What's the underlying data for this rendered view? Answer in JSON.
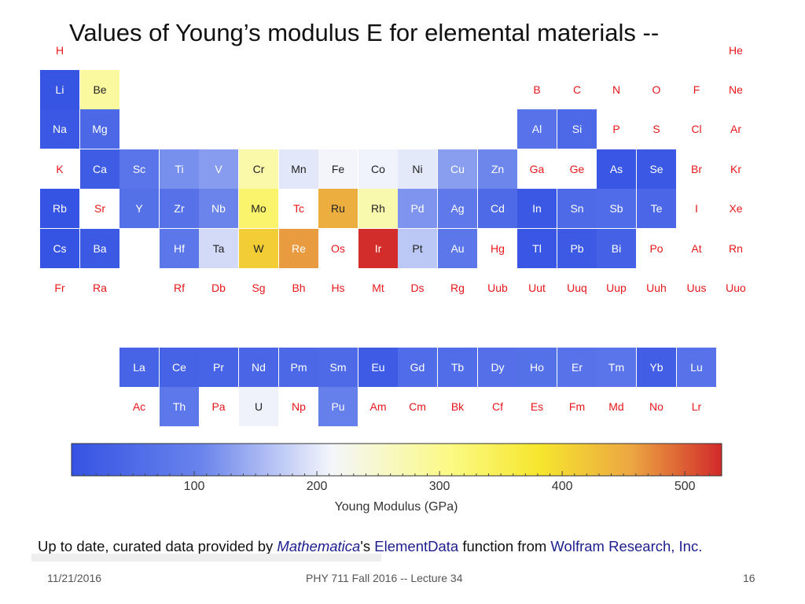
{
  "slide": {
    "title": "Values of  Young’s modulus E for elemental materials --",
    "credit": {
      "part1": "Up to date, curated data provided by ",
      "part2": "Mathematica",
      "part3": "'s ",
      "part4": "ElementData",
      "part5": " function from ",
      "part6": "Wolfram Research, Inc."
    },
    "footer": {
      "date": "11/21/2016",
      "course": "PHY 711  Fall 2016 -- Lecture 34",
      "page": "16"
    }
  },
  "colors": {
    "no_data_text": "#e8171b",
    "colormap": [
      "#3553e3",
      "#6a84ec",
      "#f4f6fb",
      "#fbfa86",
      "#f6e62e",
      "#eca742",
      "#d12a2a"
    ]
  },
  "chart_data": {
    "type": "heatmap",
    "title": "Values of  Young’s modulus E for elemental materials --",
    "colorbar": {
      "label": "Young Modulus (GPa)",
      "ticks": [
        100,
        200,
        300,
        400,
        500
      ],
      "range": [
        0,
        530
      ]
    },
    "elements": [
      {
        "symbol": "H",
        "period": 1,
        "group": 1,
        "value": null
      },
      {
        "symbol": "He",
        "period": 1,
        "group": 18,
        "value": null
      },
      {
        "symbol": "Li",
        "period": 2,
        "group": 1,
        "value": 4.9
      },
      {
        "symbol": "Be",
        "period": 2,
        "group": 2,
        "value": 287
      },
      {
        "symbol": "B",
        "period": 2,
        "group": 13,
        "value": null
      },
      {
        "symbol": "C",
        "period": 2,
        "group": 14,
        "value": null
      },
      {
        "symbol": "N",
        "period": 2,
        "group": 15,
        "value": null
      },
      {
        "symbol": "O",
        "period": 2,
        "group": 16,
        "value": null
      },
      {
        "symbol": "F",
        "period": 2,
        "group": 17,
        "value": null
      },
      {
        "symbol": "Ne",
        "period": 2,
        "group": 18,
        "value": null
      },
      {
        "symbol": "Na",
        "period": 3,
        "group": 1,
        "value": 10
      },
      {
        "symbol": "Mg",
        "period": 3,
        "group": 2,
        "value": 45
      },
      {
        "symbol": "Al",
        "period": 3,
        "group": 13,
        "value": 70
      },
      {
        "symbol": "Si",
        "period": 3,
        "group": 14,
        "value": 47
      },
      {
        "symbol": "P",
        "period": 3,
        "group": 15,
        "value": null
      },
      {
        "symbol": "S",
        "period": 3,
        "group": 16,
        "value": null
      },
      {
        "symbol": "Cl",
        "period": 3,
        "group": 17,
        "value": null
      },
      {
        "symbol": "Ar",
        "period": 3,
        "group": 18,
        "value": null
      },
      {
        "symbol": "K",
        "period": 4,
        "group": 1,
        "value": null
      },
      {
        "symbol": "Ca",
        "period": 4,
        "group": 2,
        "value": 20
      },
      {
        "symbol": "Sc",
        "period": 4,
        "group": 3,
        "value": 74
      },
      {
        "symbol": "Ti",
        "period": 4,
        "group": 4,
        "value": 116
      },
      {
        "symbol": "V",
        "period": 4,
        "group": 5,
        "value": 128
      },
      {
        "symbol": "Cr",
        "period": 4,
        "group": 6,
        "value": 279
      },
      {
        "symbol": "Mn",
        "period": 4,
        "group": 7,
        "value": 198
      },
      {
        "symbol": "Fe",
        "period": 4,
        "group": 8,
        "value": 211
      },
      {
        "symbol": "Co",
        "period": 4,
        "group": 9,
        "value": 209
      },
      {
        "symbol": "Ni",
        "period": 4,
        "group": 10,
        "value": 200
      },
      {
        "symbol": "Cu",
        "period": 4,
        "group": 11,
        "value": 130
      },
      {
        "symbol": "Zn",
        "period": 4,
        "group": 12,
        "value": 108
      },
      {
        "symbol": "Ga",
        "period": 4,
        "group": 13,
        "value": null
      },
      {
        "symbol": "Ge",
        "period": 4,
        "group": 14,
        "value": null
      },
      {
        "symbol": "As",
        "period": 4,
        "group": 15,
        "value": 8
      },
      {
        "symbol": "Se",
        "period": 4,
        "group": 16,
        "value": 10
      },
      {
        "symbol": "Br",
        "period": 4,
        "group": 17,
        "value": null
      },
      {
        "symbol": "Kr",
        "period": 4,
        "group": 18,
        "value": null
      },
      {
        "symbol": "Rb",
        "period": 5,
        "group": 1,
        "value": 2.4
      },
      {
        "symbol": "Sr",
        "period": 5,
        "group": 2,
        "value": null
      },
      {
        "symbol": "Y",
        "period": 5,
        "group": 3,
        "value": 64
      },
      {
        "symbol": "Zr",
        "period": 5,
        "group": 4,
        "value": 68
      },
      {
        "symbol": "Nb",
        "period": 5,
        "group": 5,
        "value": 105
      },
      {
        "symbol": "Mo",
        "period": 5,
        "group": 6,
        "value": 329
      },
      {
        "symbol": "Tc",
        "period": 5,
        "group": 7,
        "value": null
      },
      {
        "symbol": "Ru",
        "period": 5,
        "group": 8,
        "value": 447
      },
      {
        "symbol": "Rh",
        "period": 5,
        "group": 9,
        "value": 275
      },
      {
        "symbol": "Pd",
        "period": 5,
        "group": 10,
        "value": 121
      },
      {
        "symbol": "Ag",
        "period": 5,
        "group": 11,
        "value": 83
      },
      {
        "symbol": "Cd",
        "period": 5,
        "group": 12,
        "value": 50
      },
      {
        "symbol": "In",
        "period": 5,
        "group": 13,
        "value": 11
      },
      {
        "symbol": "Sn",
        "period": 5,
        "group": 14,
        "value": 50
      },
      {
        "symbol": "Sb",
        "period": 5,
        "group": 15,
        "value": 55
      },
      {
        "symbol": "Te",
        "period": 5,
        "group": 16,
        "value": 43
      },
      {
        "symbol": "I",
        "period": 5,
        "group": 17,
        "value": null
      },
      {
        "symbol": "Xe",
        "period": 5,
        "group": 18,
        "value": null
      },
      {
        "symbol": "Cs",
        "period": 6,
        "group": 1,
        "value": 1.7
      },
      {
        "symbol": "Ba",
        "period": 6,
        "group": 2,
        "value": 13
      },
      {
        "symbol": "Hf",
        "period": 6,
        "group": 4,
        "value": 78
      },
      {
        "symbol": "Ta",
        "period": 6,
        "group": 5,
        "value": 186
      },
      {
        "symbol": "W",
        "period": 6,
        "group": 6,
        "value": 411
      },
      {
        "symbol": "Re",
        "period": 6,
        "group": 7,
        "value": 463
      },
      {
        "symbol": "Os",
        "period": 6,
        "group": 8,
        "value": null
      },
      {
        "symbol": "Ir",
        "period": 6,
        "group": 9,
        "value": 528
      },
      {
        "symbol": "Pt",
        "period": 6,
        "group": 10,
        "value": 168
      },
      {
        "symbol": "Au",
        "period": 6,
        "group": 11,
        "value": 78
      },
      {
        "symbol": "Hg",
        "period": 6,
        "group": 12,
        "value": null
      },
      {
        "symbol": "Tl",
        "period": 6,
        "group": 13,
        "value": 8
      },
      {
        "symbol": "Pb",
        "period": 6,
        "group": 14,
        "value": 16
      },
      {
        "symbol": "Bi",
        "period": 6,
        "group": 15,
        "value": 32
      },
      {
        "symbol": "Po",
        "period": 6,
        "group": 16,
        "value": null
      },
      {
        "symbol": "At",
        "period": 6,
        "group": 17,
        "value": null
      },
      {
        "symbol": "Rn",
        "period": 6,
        "group": 18,
        "value": null
      },
      {
        "symbol": "Fr",
        "period": 7,
        "group": 1,
        "value": null
      },
      {
        "symbol": "Ra",
        "period": 7,
        "group": 2,
        "value": null
      },
      {
        "symbol": "Rf",
        "period": 7,
        "group": 4,
        "value": null
      },
      {
        "symbol": "Db",
        "period": 7,
        "group": 5,
        "value": null
      },
      {
        "symbol": "Sg",
        "period": 7,
        "group": 6,
        "value": null
      },
      {
        "symbol": "Bh",
        "period": 7,
        "group": 7,
        "value": null
      },
      {
        "symbol": "Hs",
        "period": 7,
        "group": 8,
        "value": null
      },
      {
        "symbol": "Mt",
        "period": 7,
        "group": 9,
        "value": null
      },
      {
        "symbol": "Ds",
        "period": 7,
        "group": 10,
        "value": null
      },
      {
        "symbol": "Rg",
        "period": 7,
        "group": 11,
        "value": null
      },
      {
        "symbol": "Uub",
        "period": 7,
        "group": 12,
        "value": null
      },
      {
        "symbol": "Uut",
        "period": 7,
        "group": 13,
        "value": null
      },
      {
        "symbol": "Uuq",
        "period": 7,
        "group": 14,
        "value": null
      },
      {
        "symbol": "Uup",
        "period": 7,
        "group": 15,
        "value": null
      },
      {
        "symbol": "Uuh",
        "period": 7,
        "group": 16,
        "value": null
      },
      {
        "symbol": "Uus",
        "period": 7,
        "group": 17,
        "value": null
      },
      {
        "symbol": "Uuo",
        "period": 7,
        "group": 18,
        "value": null
      },
      {
        "symbol": "La",
        "period": 9,
        "group": 3,
        "value": 37
      },
      {
        "symbol": "Ce",
        "period": 9,
        "group": 4,
        "value": 34
      },
      {
        "symbol": "Pr",
        "period": 9,
        "group": 5,
        "value": 37
      },
      {
        "symbol": "Nd",
        "period": 9,
        "group": 6,
        "value": 41
      },
      {
        "symbol": "Pm",
        "period": 9,
        "group": 7,
        "value": 46
      },
      {
        "symbol": "Sm",
        "period": 9,
        "group": 8,
        "value": 50
      },
      {
        "symbol": "Eu",
        "period": 9,
        "group": 9,
        "value": 18
      },
      {
        "symbol": "Gd",
        "period": 9,
        "group": 10,
        "value": 55
      },
      {
        "symbol": "Tb",
        "period": 9,
        "group": 11,
        "value": 56
      },
      {
        "symbol": "Dy",
        "period": 9,
        "group": 12,
        "value": 61
      },
      {
        "symbol": "Ho",
        "period": 9,
        "group": 13,
        "value": 64
      },
      {
        "symbol": "Er",
        "period": 9,
        "group": 14,
        "value": 70
      },
      {
        "symbol": "Tm",
        "period": 9,
        "group": 15,
        "value": 74
      },
      {
        "symbol": "Yb",
        "period": 9,
        "group": 16,
        "value": 24
      },
      {
        "symbol": "Lu",
        "period": 9,
        "group": 17,
        "value": 69
      },
      {
        "symbol": "Ac",
        "period": 10,
        "group": 3,
        "value": null
      },
      {
        "symbol": "Th",
        "period": 10,
        "group": 4,
        "value": 79
      },
      {
        "symbol": "Pa",
        "period": 10,
        "group": 5,
        "value": null
      },
      {
        "symbol": "U",
        "period": 10,
        "group": 6,
        "value": 208
      },
      {
        "symbol": "Np",
        "period": 10,
        "group": 7,
        "value": null
      },
      {
        "symbol": "Pu",
        "period": 10,
        "group": 8,
        "value": 96
      },
      {
        "symbol": "Am",
        "period": 10,
        "group": 9,
        "value": null
      },
      {
        "symbol": "Cm",
        "period": 10,
        "group": 10,
        "value": null
      },
      {
        "symbol": "Bk",
        "period": 10,
        "group": 11,
        "value": null
      },
      {
        "symbol": "Cf",
        "period": 10,
        "group": 12,
        "value": null
      },
      {
        "symbol": "Es",
        "period": 10,
        "group": 13,
        "value": null
      },
      {
        "symbol": "Fm",
        "period": 10,
        "group": 14,
        "value": null
      },
      {
        "symbol": "Md",
        "period": 10,
        "group": 15,
        "value": null
      },
      {
        "symbol": "No",
        "period": 10,
        "group": 16,
        "value": null
      },
      {
        "symbol": "Lr",
        "period": 10,
        "group": 17,
        "value": null
      }
    ]
  }
}
